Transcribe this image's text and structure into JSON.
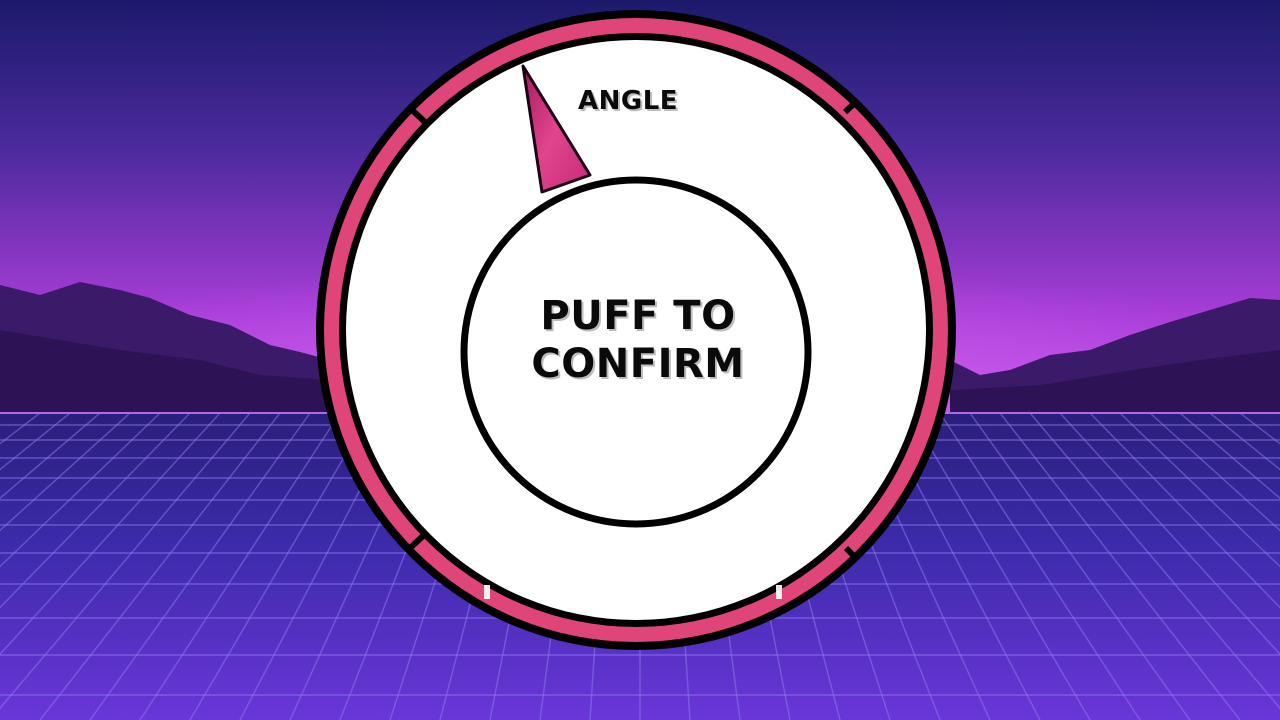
{
  "dial": {
    "angle_label": "ANGLE",
    "center_line1": "PUFF TO",
    "center_line2": "CONFIRM"
  },
  "colors": {
    "sky_top": "#1c1a6b",
    "sky_glow": "#b23cd8",
    "mountain": "#3a1766",
    "grid_floor": "#5a2fd0",
    "grid_line": "#9a7cf0",
    "ring_outer": "#000000",
    "ring_accent": "#e0457a",
    "dial_face": "#ffffff",
    "pointer": "#d02e86"
  },
  "icons": {
    "pointer": "triangle-pointer-icon"
  }
}
